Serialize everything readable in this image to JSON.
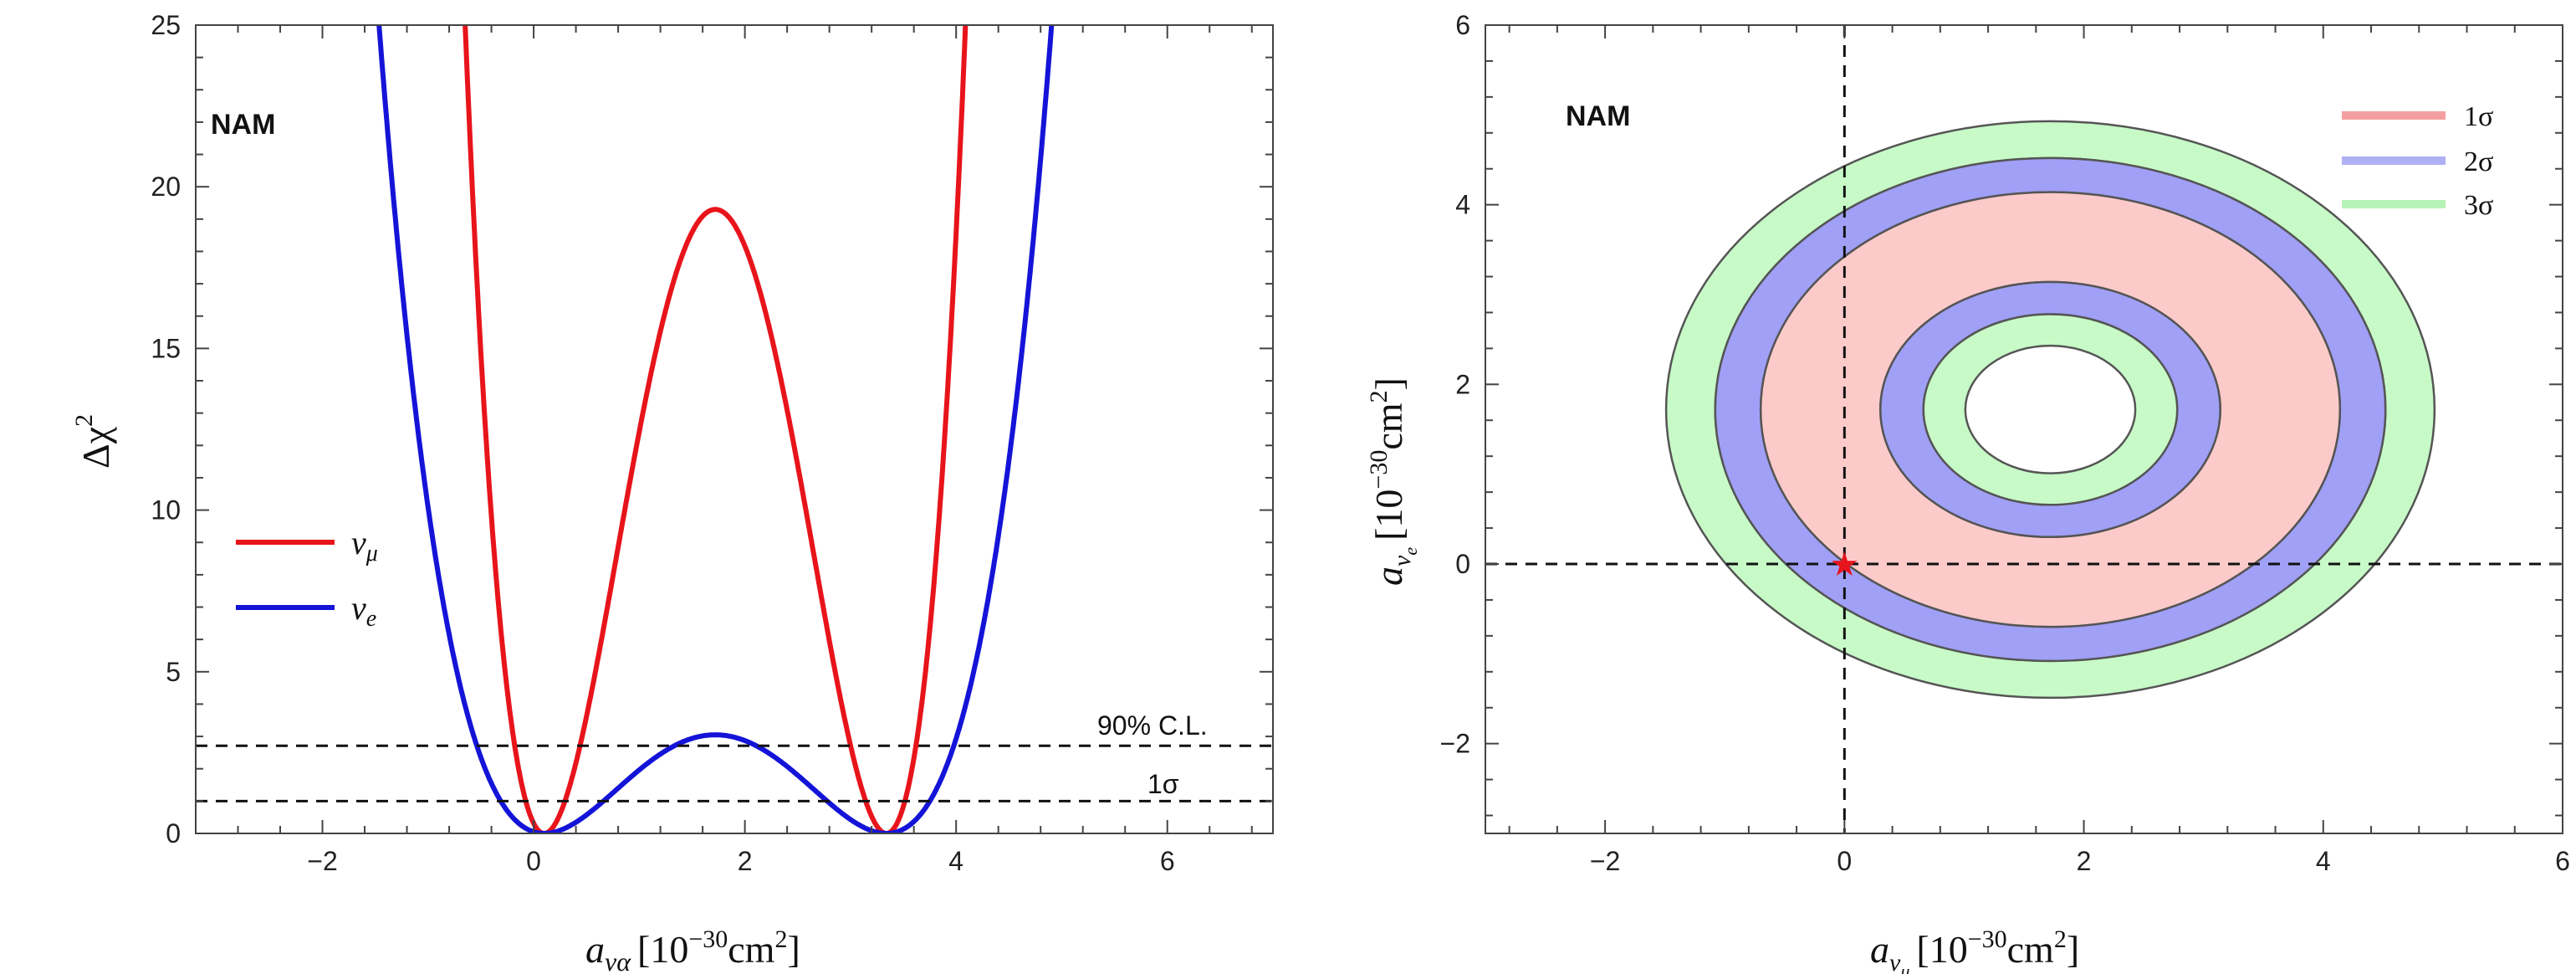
{
  "chart_data": [
    {
      "type": "line",
      "panel": "left",
      "tag": "NAM",
      "xlabel": {
        "main": "a",
        "sub": "να",
        "unit_pre": "[10",
        "exp": "−30",
        "unit_mid": "cm",
        "exp2": "2",
        "unit_post": "]"
      },
      "ylabel": {
        "main": "Δχ",
        "exp": "2"
      },
      "xlim": [
        -3.2,
        7
      ],
      "ylim": [
        0,
        25
      ],
      "xticks": [
        -2,
        0,
        2,
        4,
        6
      ],
      "xtick_labels": [
        "−2",
        "0",
        "2",
        "4",
        "6"
      ],
      "yticks": [
        0,
        5,
        10,
        15,
        20,
        25
      ],
      "ytick_labels": [
        "0",
        "5",
        "10",
        "15",
        "20",
        "25"
      ],
      "series": [
        {
          "name": "ν",
          "sub": "μ",
          "color": "#e8141b",
          "center": 1.72,
          "amplitude": 19.3,
          "half_sep": 1.62
        },
        {
          "name": "ν",
          "sub": "e",
          "color": "#1414d8",
          "center": 1.72,
          "amplitude": 3.05,
          "half_sep": 1.62
        }
      ],
      "hlines": [
        {
          "y": 2.71,
          "label": "90% C.L."
        },
        {
          "y": 1.0,
          "label": "1σ"
        }
      ]
    },
    {
      "type": "contour",
      "panel": "right",
      "tag": "NAM",
      "xlabel": {
        "main": "a",
        "sub": "ν",
        "subsub": "μ",
        "unit_pre": "[10",
        "exp": "−30",
        "unit_mid": "cm",
        "exp2": "2",
        "unit_post": "]"
      },
      "ylabel": {
        "main": "a",
        "sub": "ν",
        "subsub": "e",
        "unit_pre": "[10",
        "exp": "−30",
        "unit_mid": "cm",
        "exp2": "2",
        "unit_post": "]"
      },
      "xlim": [
        -3,
        6
      ],
      "ylim": [
        -3,
        6
      ],
      "xticks": [
        -2,
        0,
        2,
        4,
        6
      ],
      "xtick_labels": [
        "−2",
        "0",
        "2",
        "4",
        "6"
      ],
      "yticks": [
        -2,
        0,
        2,
        4,
        6
      ],
      "ytick_labels": [
        "−2",
        "0",
        "2",
        "4",
        "6"
      ],
      "center": [
        1.72,
        1.72
      ],
      "levels": [
        {
          "label": "1σ",
          "color": "#fdcaca",
          "legend_color": "#f5a0a0",
          "r_outer": 2.42,
          "r_inner": 1.42
        },
        {
          "label": "2σ",
          "color": "#a0a0f7",
          "legend_color": "#b0b0f5",
          "r_outer": 2.8,
          "r_inner": 1.06
        },
        {
          "label": "3σ",
          "color": "#c7fac7",
          "legend_color": "#b6f3b6",
          "r_outer": 3.21,
          "r_inner": 0.71
        }
      ],
      "best_fit": {
        "x": 0,
        "y": 0,
        "marker": "★",
        "color": "#e8141b"
      },
      "dashed_lines": {
        "x": 0,
        "y": 0
      }
    }
  ]
}
